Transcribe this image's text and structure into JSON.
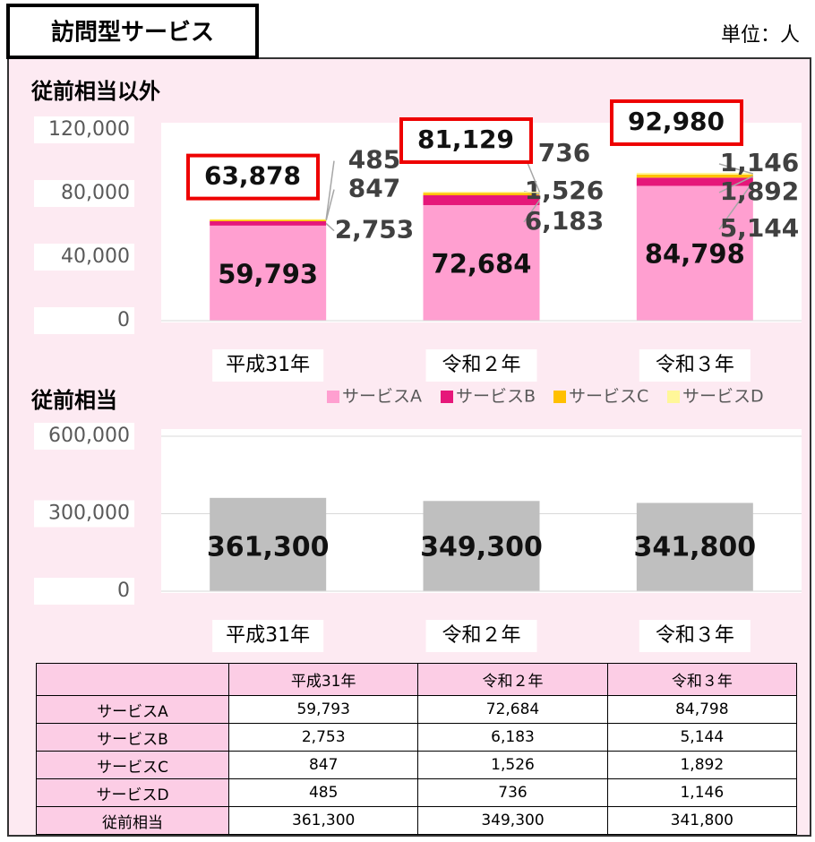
{
  "header": {
    "title": "訪問型サービス",
    "unit": "単位：人"
  },
  "chart_data": [
    {
      "type": "bar",
      "stacked": true,
      "title": "従前相当以外",
      "categories": [
        "平成31年",
        "令和２年",
        "令和３年"
      ],
      "series": [
        {
          "name": "サービスA",
          "color": "#ff9fd0",
          "values": [
            59793,
            72684,
            84798
          ],
          "value_labels": [
            "59,793",
            "72,684",
            "84,798"
          ]
        },
        {
          "name": "サービスB",
          "color": "#e6177a",
          "values": [
            2753,
            6183,
            5144
          ],
          "value_labels": [
            "2,753",
            "6,183",
            "5,144"
          ]
        },
        {
          "name": "サービスC",
          "color": "#ffc000",
          "values": [
            847,
            1526,
            1892
          ],
          "value_labels": [
            "847",
            "1,526",
            "1,892"
          ]
        },
        {
          "name": "サービスD",
          "color": "#fff799",
          "values": [
            485,
            736,
            1146
          ],
          "value_labels": [
            "485",
            "736",
            "1,146"
          ]
        }
      ],
      "totals": [
        63878,
        81129,
        92980
      ],
      "total_labels": [
        "63,878",
        "81,129",
        "92,980"
      ],
      "ylim": [
        0,
        120000
      ],
      "yticks": [
        0,
        {
          "value": 40000,
          "label": "40,000"
        },
        {
          "value": 80000,
          "label": "80,000"
        },
        {
          "value": 120000,
          "label": "120,000"
        }
      ],
      "grid": false,
      "legend": "bottom"
    },
    {
      "type": "bar",
      "title": "従前相当",
      "categories": [
        "平成31年",
        "令和２年",
        "令和３年"
      ],
      "values": [
        361300,
        349300,
        341800
      ],
      "value_labels": [
        "361,300",
        "349,300",
        "341,800"
      ],
      "color": "#bfbfbf",
      "ylim": [
        0,
        600000
      ],
      "yticks": [
        0,
        {
          "value": 300000,
          "label": "300,000"
        },
        {
          "value": 600000,
          "label": "600,000"
        }
      ],
      "grid": true
    }
  ],
  "table": {
    "header": [
      "平成31年",
      "令和２年",
      "令和３年"
    ],
    "rows": [
      {
        "label": "サービスA",
        "cells": [
          "59,793",
          "72,684",
          "84,798"
        ]
      },
      {
        "label": "サービスB",
        "cells": [
          "2,753",
          "6,183",
          "5,144"
        ]
      },
      {
        "label": "サービスC",
        "cells": [
          "847",
          "1,526",
          "1,892"
        ]
      },
      {
        "label": "サービスD",
        "cells": [
          "485",
          "736",
          "1,146"
        ]
      },
      {
        "label": "従前相当",
        "cells": [
          "361,300",
          "349,300",
          "341,800"
        ]
      }
    ]
  }
}
